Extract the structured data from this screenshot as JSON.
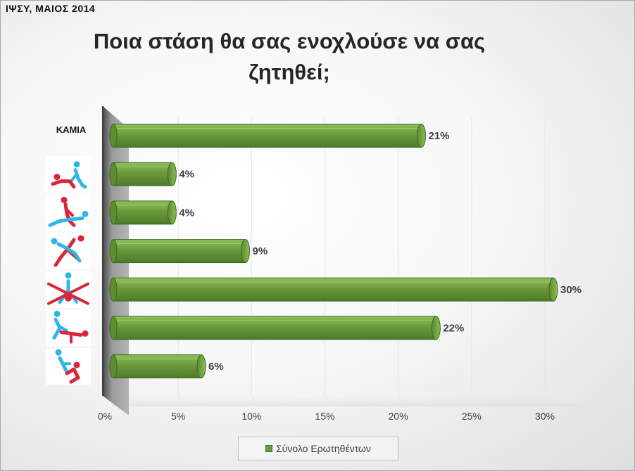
{
  "header": {
    "corner_label": "ΙΨΣΥ, ΜΑΙΟΣ 2014"
  },
  "chart_data": {
    "type": "bar",
    "orientation": "horizontal",
    "title": "Ποια στάση θα σας ενοχλούσε να σας ζητηθεί;",
    "title_lines": [
      "Ποια στάση θα σας ενοχλούσε να σας",
      "ζητηθεί;"
    ],
    "categories": [
      "ΚΑΜΙΑ",
      "",
      "",
      "",
      "",
      "",
      ""
    ],
    "category_icons": [
      "",
      "position-icon-1",
      "position-icon-2",
      "position-icon-3",
      "position-icon-4",
      "position-icon-5",
      "position-icon-6"
    ],
    "series": [
      {
        "name": "Σύνολο Ερωτηθέντων",
        "values": [
          21,
          4,
          4,
          9,
          30,
          22,
          6
        ],
        "labels": [
          "21%",
          "4%",
          "4%",
          "9%",
          "30%",
          "22%",
          "6%"
        ],
        "color": "#6b9a3c"
      }
    ],
    "xlim": [
      0,
      30
    ],
    "x_ticks": [
      "0%",
      "5%",
      "10%",
      "15%",
      "20%",
      "25%",
      "30%"
    ],
    "grid": true,
    "legend_position": "bottom",
    "colors": {
      "bar_fill": "#6b9a3c",
      "bar_edge": "#3f6a1f",
      "wall": "#8a8a8a",
      "icon_red": "#d9263a",
      "icon_blue": "#2fb6e6"
    }
  }
}
